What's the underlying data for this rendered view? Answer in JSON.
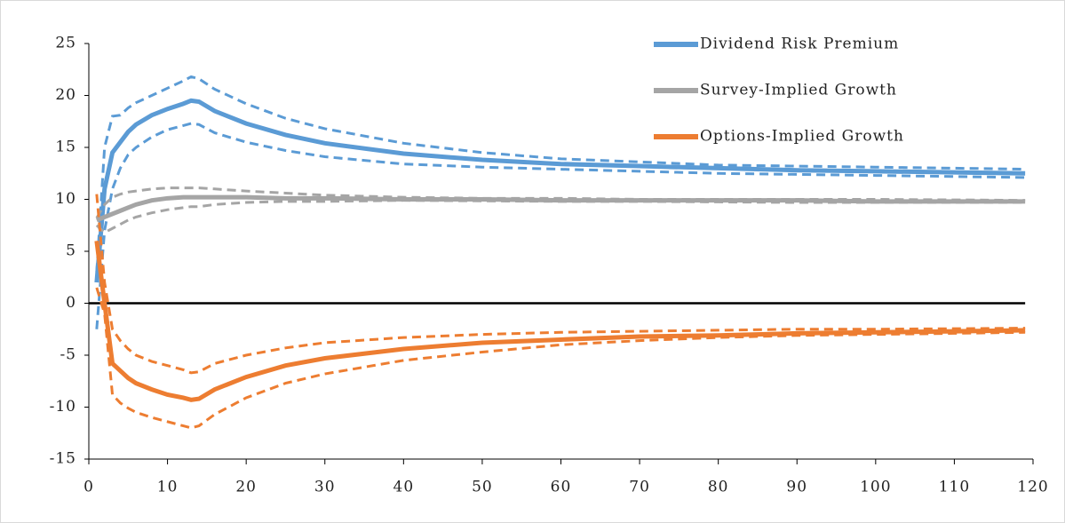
{
  "chart_data": {
    "type": "line",
    "x": [
      1,
      2,
      3,
      4,
      5,
      6,
      8,
      10,
      12,
      13,
      14,
      16,
      20,
      25,
      30,
      40,
      50,
      60,
      70,
      80,
      90,
      100,
      110,
      119
    ],
    "series": [
      {
        "name": "Dividend Risk Premium",
        "color": "#5b9bd5",
        "values": [
          2,
          11,
          14.5,
          15.5,
          16.5,
          17.2,
          18.1,
          18.7,
          19.2,
          19.5,
          19.4,
          18.5,
          17.3,
          16.2,
          15.4,
          14.4,
          13.8,
          13.4,
          13.2,
          13.0,
          12.8,
          12.7,
          12.6,
          12.5
        ],
        "upper": [
          3,
          15,
          18,
          18.1,
          18.8,
          19.3,
          20.0,
          20.7,
          21.4,
          21.8,
          21.6,
          20.6,
          19.2,
          17.8,
          16.8,
          15.4,
          14.5,
          13.9,
          13.6,
          13.3,
          13.2,
          13.1,
          13.0,
          12.9
        ],
        "lower": [
          -2.5,
          7,
          11,
          13,
          14.3,
          15,
          16,
          16.7,
          17.1,
          17.3,
          17.2,
          16.4,
          15.5,
          14.7,
          14.1,
          13.4,
          13.1,
          12.9,
          12.7,
          12.5,
          12.4,
          12.3,
          12.2,
          12.1
        ]
      },
      {
        "name": "Survey-Implied Growth",
        "color": "#a5a5a5",
        "values": [
          8,
          8.3,
          8.6,
          8.9,
          9.2,
          9.5,
          9.9,
          10.1,
          10.2,
          10.2,
          10.2,
          10.2,
          10.2,
          10.1,
          10.1,
          10.0,
          10.0,
          9.9,
          9.9,
          9.9,
          9.9,
          9.8,
          9.8,
          9.8
        ],
        "upper": [
          8.2,
          9.5,
          10.2,
          10.5,
          10.7,
          10.8,
          11,
          11.1,
          11.1,
          11.1,
          11.1,
          11,
          10.8,
          10.6,
          10.4,
          10.2,
          10.1,
          10.1,
          10,
          10,
          10,
          10,
          9.95,
          9.9
        ],
        "lower": [
          7.5,
          6.8,
          7.2,
          7.6,
          8,
          8.3,
          8.7,
          9,
          9.2,
          9.3,
          9.3,
          9.5,
          9.7,
          9.8,
          9.8,
          9.9,
          9.85,
          9.8,
          9.8,
          9.75,
          9.7,
          9.7,
          9.7,
          9.7
        ]
      },
      {
        "name": "Options-Implied Growth",
        "color": "#ed7d31",
        "values": [
          6,
          0,
          -5.8,
          -6.5,
          -7.2,
          -7.7,
          -8.3,
          -8.8,
          -9.1,
          -9.3,
          -9.2,
          -8.3,
          -7.1,
          -6,
          -5.3,
          -4.4,
          -3.8,
          -3.5,
          -3.2,
          -3.1,
          -2.9,
          -2.8,
          -2.7,
          -2.6
        ],
        "upper": [
          10.5,
          2,
          -2.5,
          -3.6,
          -4.4,
          -5,
          -5.6,
          -6,
          -6.4,
          -6.7,
          -6.6,
          -5.8,
          -5,
          -4.3,
          -3.8,
          -3.3,
          -3,
          -2.8,
          -2.7,
          -2.6,
          -2.5,
          -2.5,
          -2.45,
          -2.4
        ],
        "lower": [
          1.5,
          -1,
          -8.8,
          -9.6,
          -10.1,
          -10.5,
          -11,
          -11.4,
          -11.8,
          -12,
          -11.8,
          -10.7,
          -9.1,
          -7.7,
          -6.8,
          -5.5,
          -4.7,
          -4,
          -3.6,
          -3.3,
          -3.1,
          -3,
          -2.9,
          -2.8
        ]
      }
    ],
    "xlim": [
      0,
      120
    ],
    "xticks": [
      0,
      10,
      20,
      30,
      40,
      50,
      60,
      70,
      80,
      90,
      100,
      110,
      120
    ],
    "ylim": [
      -15,
      25
    ],
    "yticks": [
      -15,
      -10,
      -5,
      0,
      5,
      10,
      15,
      20,
      25
    ],
    "legend": "top-right"
  }
}
